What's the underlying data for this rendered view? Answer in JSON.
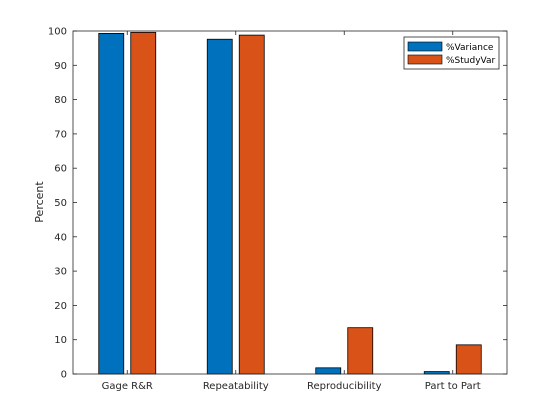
{
  "chart_data": {
    "type": "bar",
    "title": "",
    "xlabel": "",
    "ylabel": "Percent",
    "ylim": [
      0,
      100
    ],
    "yticks": [
      0,
      10,
      20,
      30,
      40,
      50,
      60,
      70,
      80,
      90,
      100
    ],
    "categories": [
      "Gage R&R",
      "Repeatability",
      "Reproducibility",
      "Part to Part"
    ],
    "series": [
      {
        "name": "%Variance",
        "color": "#0072BD",
        "values": [
          99.3,
          97.6,
          1.8,
          0.7
        ]
      },
      {
        "name": "%StudyVar",
        "color": "#D95319",
        "values": [
          99.6,
          98.8,
          13.5,
          8.5
        ]
      }
    ],
    "legend_position": "top-right",
    "grid": false
  }
}
